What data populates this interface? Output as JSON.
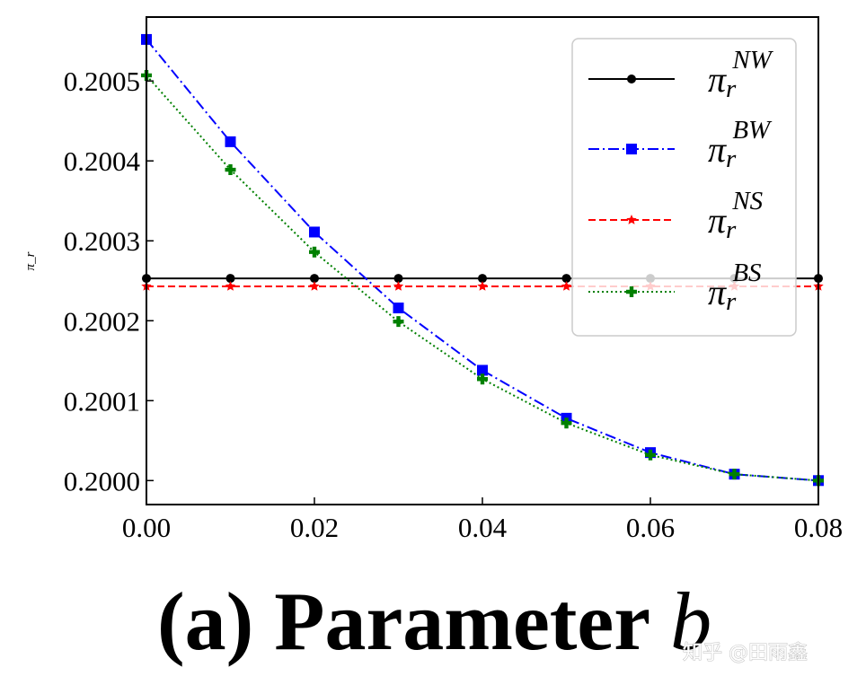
{
  "chart_data": {
    "type": "line",
    "title": "",
    "xlabel": "",
    "ylabel": "π_r",
    "xlim": [
      0.0,
      0.08
    ],
    "ylim": [
      0.19997,
      0.20058
    ],
    "grid": false,
    "legend_position": "top-right",
    "x": [
      0.0,
      0.01,
      0.02,
      0.03,
      0.04,
      0.05,
      0.06,
      0.07,
      0.08
    ],
    "x_ticks": [
      "0.00",
      "0.02",
      "0.04",
      "0.06",
      "0.08"
    ],
    "x_tick_values": [
      0.0,
      0.02,
      0.04,
      0.06,
      0.08
    ],
    "y_ticks": [
      "0.2000",
      "0.2001",
      "0.2002",
      "0.2003",
      "0.2004",
      "0.2005"
    ],
    "y_tick_values": [
      0.2,
      0.2001,
      0.2002,
      0.2003,
      0.2004,
      0.2005
    ],
    "series": [
      {
        "name": "π_r^NW",
        "sym": "π",
        "sub": "r",
        "sup": "NW",
        "color": "#000000",
        "linestyle": "solid",
        "marker": "circle",
        "values": [
          0.200253,
          0.200253,
          0.200253,
          0.200253,
          0.200253,
          0.200253,
          0.200253,
          0.200253,
          0.200253
        ]
      },
      {
        "name": "π_r^BW",
        "sym": "π",
        "sub": "r",
        "sup": "BW",
        "color": "#0000ff",
        "linestyle": "dashdot",
        "marker": "square",
        "values": [
          0.200552,
          0.200424,
          0.200311,
          0.200216,
          0.200138,
          0.200078,
          0.200035,
          0.200008,
          0.2
        ]
      },
      {
        "name": "π_r^NS",
        "sym": "π",
        "sub": "r",
        "sup": "NS",
        "color": "#ff0000",
        "linestyle": "dashed",
        "marker": "star",
        "values": [
          0.200243,
          0.200243,
          0.200243,
          0.200243,
          0.200243,
          0.200243,
          0.200243,
          0.200243,
          0.200243
        ]
      },
      {
        "name": "π_r^BS",
        "sym": "π",
        "sub": "r",
        "sup": "BS",
        "color": "#008000",
        "linestyle": "dotted",
        "marker": "plus",
        "values": [
          0.200507,
          0.200389,
          0.200286,
          0.200199,
          0.200127,
          0.200072,
          0.200032,
          0.200008,
          0.2
        ]
      }
    ]
  },
  "caption": {
    "text": "(a) Parameter",
    "var": "b"
  },
  "watermark": "知乎 @田雨鑫"
}
